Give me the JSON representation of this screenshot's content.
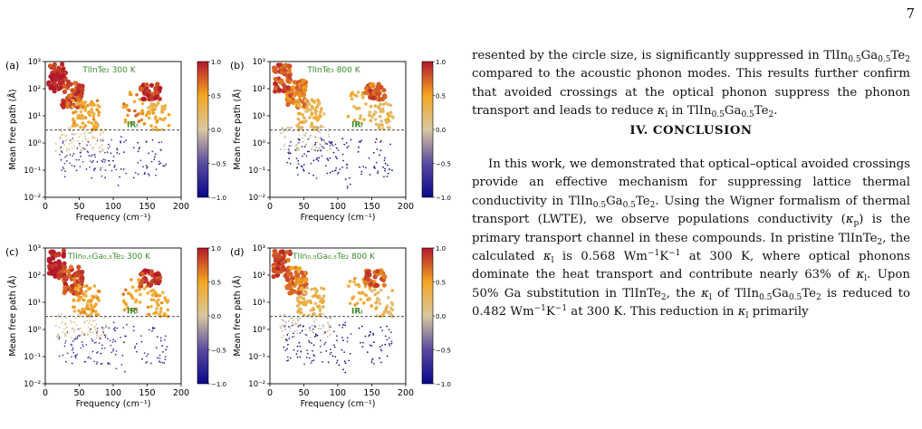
{
  "page_number": "7",
  "figure": {
    "panels": [
      {
        "label": "(a)",
        "material": "TlInTe₂",
        "temperature": "300 K",
        "ir_label": "IRₗ"
      },
      {
        "label": "(b)",
        "material": "TlInTe₂",
        "temperature": "800 K",
        "ir_label": "IRₗ"
      },
      {
        "label": "(c)",
        "material": "TlIn₀.₅Ga₀.₅Te₂",
        "temperature": "300 K",
        "ir_label": "IRₗ"
      },
      {
        "label": "(d)",
        "material": "TlIn₀.₅Ga₀.₅Te₂",
        "temperature": "800 K",
        "ir_label": "IRₗ"
      }
    ],
    "xlabel": "Frequency (cm⁻¹)",
    "ylabel": "Mean free path (Å)",
    "x_ticks": [
      "0",
      "50",
      "100",
      "150",
      "200"
    ],
    "y_ticks": [
      "10⁻²",
      "10⁻¹",
      "10⁰",
      "10¹",
      "10²",
      "10³"
    ],
    "colorbar_ticks": [
      "1.0",
      "0.5",
      "0.0",
      "−0.5",
      "−1.0"
    ],
    "colors": {
      "high": "#b2182b",
      "mid": "#f4a622",
      "low": "#21219c",
      "title_green": "#3a8a2a"
    }
  },
  "chart_data": {
    "type": "scatter",
    "x_range": [
      0,
      200
    ],
    "y_range": [
      0.01,
      1000
    ],
    "y_scale": "log",
    "colorbar_range": [
      -1.0,
      1.0
    ],
    "reference_line_y": 3,
    "clusters": [
      {
        "x0": 5,
        "x1": 30,
        "ymin": 80,
        "ymax": 800,
        "c": 0.95,
        "n": 60
      },
      {
        "x0": 25,
        "x1": 55,
        "ymin": 20,
        "ymax": 200,
        "c": 0.8,
        "n": 60
      },
      {
        "x0": 40,
        "x1": 80,
        "ymin": 3,
        "ymax": 40,
        "c": 0.45,
        "n": 70
      },
      {
        "x0": 15,
        "x1": 90,
        "ymin": 0.5,
        "ymax": 4,
        "c": 0.1,
        "n": 80
      },
      {
        "x0": 20,
        "x1": 100,
        "ymin": 0.05,
        "ymax": 1.5,
        "c": -0.6,
        "n": 80
      },
      {
        "x0": 100,
        "x1": 120,
        "ymin": 0.02,
        "ymax": 2,
        "c": -0.7,
        "n": 20
      },
      {
        "x0": 115,
        "x1": 150,
        "ymin": 5,
        "ymax": 80,
        "c": 0.55,
        "n": 30
      },
      {
        "x0": 140,
        "x1": 170,
        "ymin": 40,
        "ymax": 150,
        "c": 0.9,
        "n": 40
      },
      {
        "x0": 150,
        "x1": 182,
        "ymin": 3,
        "ymax": 30,
        "c": 0.4,
        "n": 40
      },
      {
        "x0": 130,
        "x1": 180,
        "ymin": 0.05,
        "ymax": 1.5,
        "c": -0.7,
        "n": 40
      }
    ]
  },
  "text": {
    "para1_a": "resented by the circle size, is significantly suppressed in TlIn",
    "para1_b": "Ga",
    "para1_c": "Te",
    "para1_d": " compared to the acoustic phonon modes. This results further confirm that avoided crossings at the optical phonon suppress the phonon transport and leads to reduce ",
    "para1_e": " in TlIn",
    "para1_f": "Ga",
    "para1_g": "Te",
    "para1_h": ".",
    "heading": "IV.   CONCLUSION",
    "para2_a": "In this work, we demonstrated that optical–optical avoided crossings provide an effective mechanism for suppressing lattice thermal conductivity in TlIn",
    "para2_b": "Ga",
    "para2_c": "Te",
    "para2_d": ". Using the Wigner formalism of thermal transport (LWTE), we observe populations conductivity (",
    "para2_e": ") is the primary transport channel in these compounds. In pristine TlInTe",
    "para2_f": ", the calculated ",
    "para2_g": " is 0.568 Wm",
    "para2_h": "K",
    "para2_i": " at 300 K, where optical phonons dominate the heat transport and contribute nearly 63% of ",
    "para2_j": ". Upon 50% Ga substitution in TlInTe",
    "para2_k": ", the ",
    "para2_l": " of TlIn",
    "para2_m": "Ga",
    "para2_n": "Te",
    "para2_o": " is reduced to 0.482 Wm",
    "para2_p": "K",
    "para2_q": " at 300 K. This reduction in ",
    "para2_r": " primarily",
    "sub_05": "0.5",
    "sub_2": "2",
    "sub_l": "l",
    "sub_p": "p",
    "sup_m1": "−1",
    "kappa": "κ"
  }
}
